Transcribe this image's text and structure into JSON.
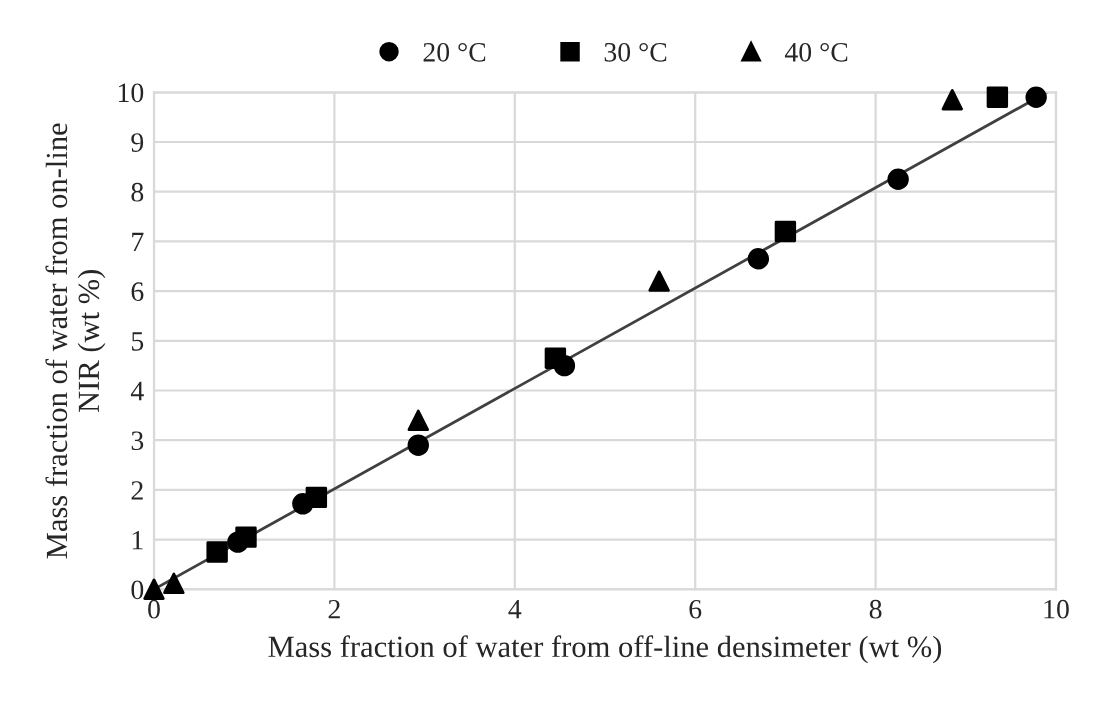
{
  "chart_data": {
    "type": "scatter",
    "xlabel": "Mass fraction of water from off-line densimeter (wt %)",
    "ylabel": "Mass fraction of water from on-line\nNIR (wt %)",
    "xlim": [
      0,
      10
    ],
    "xticks": [
      0,
      2,
      4,
      6,
      8,
      10
    ],
    "ylim": [
      0,
      10
    ],
    "yticks": [
      0,
      1,
      2,
      3,
      4,
      5,
      6,
      7,
      8,
      9,
      10
    ],
    "grid": true,
    "legend": "top",
    "series": [
      {
        "name": "20 °C",
        "color": "#000000",
        "marker": "circle",
        "x": [
          0.93,
          1.65,
          2.93,
          4.55,
          6.7,
          8.25,
          9.78
        ],
        "values": [
          0.95,
          1.72,
          2.9,
          4.5,
          6.65,
          8.25,
          9.9
        ]
      },
      {
        "name": "30 °C",
        "color": "#000000",
        "marker": "square",
        "x": [
          0.7,
          1.02,
          1.8,
          4.45,
          7.0,
          9.35
        ],
        "values": [
          0.75,
          1.05,
          1.85,
          4.65,
          7.2,
          9.9
        ]
      },
      {
        "name": "40 °C",
        "color": "#000000",
        "marker": "triangle",
        "x": [
          0.0,
          0.22,
          2.93,
          5.6,
          8.85
        ],
        "values": [
          0.0,
          0.12,
          3.4,
          6.2,
          9.85
        ]
      },
      {
        "type": "line",
        "color": "#404040",
        "marker": "none",
        "x": [
          0,
          9.9
        ],
        "values": [
          0,
          10
        ]
      }
    ]
  }
}
